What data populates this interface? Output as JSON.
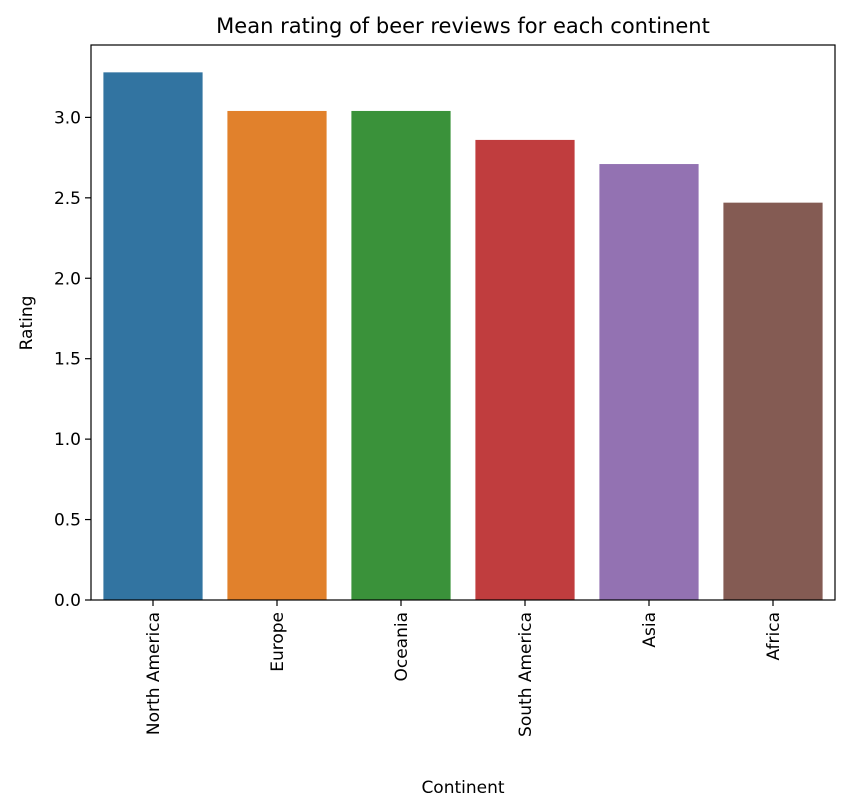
{
  "chart_data": {
    "type": "bar",
    "title": "Mean rating of beer reviews for each continent",
    "xlabel": "Continent",
    "ylabel": "Rating",
    "categories": [
      "North America",
      "Europe",
      "Oceania",
      "South America",
      "Asia",
      "Africa"
    ],
    "values": [
      3.28,
      3.04,
      3.04,
      2.86,
      2.71,
      2.47
    ],
    "colors": [
      "#3274a1",
      "#e1812c",
      "#3a923a",
      "#c03d3e",
      "#9372b2",
      "#845b53"
    ],
    "ylim": [
      0,
      3.45
    ],
    "yticks": [
      0.0,
      0.5,
      1.0,
      1.5,
      2.0,
      2.5,
      3.0
    ],
    "ytick_labels": [
      "0.0",
      "0.5",
      "1.0",
      "1.5",
      "2.0",
      "2.5",
      "3.0"
    ],
    "grid": false
  }
}
